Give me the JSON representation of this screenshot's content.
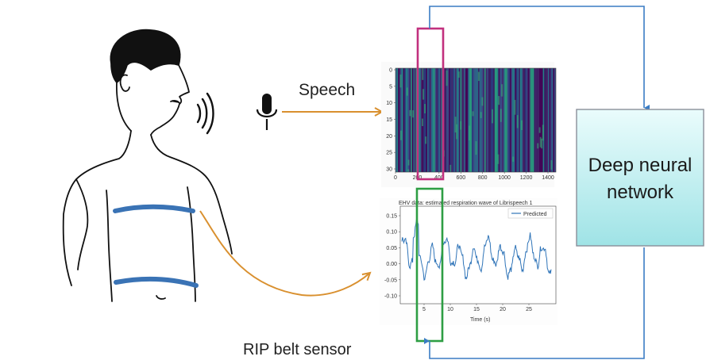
{
  "labels": {
    "speech": "Speech",
    "rip_belt": "RIP belt sensor",
    "dnn_line1": "Deep neural",
    "dnn_line2": "network"
  },
  "spectrogram": {
    "y_ticks": [
      "0",
      "5",
      "10",
      "15",
      "20",
      "25",
      "30"
    ],
    "x_ticks": [
      "0",
      "200",
      "400",
      "600",
      "800",
      "1000",
      "1200",
      "1400"
    ]
  },
  "resp_plot": {
    "title": "EHV data: estimated respiration wave of Librispeech 1",
    "legend": "Predicted",
    "x_label": "Time (s)",
    "y_ticks": [
      "0.15",
      "0.10",
      "0.05",
      "0.00",
      "-0.05",
      "-0.10"
    ],
    "x_ticks": [
      "5",
      "10",
      "15",
      "20",
      "25"
    ]
  },
  "colors": {
    "belt": "#3a73b5",
    "orange_arrow": "#d9902f",
    "blue_loop": "#3a7cc4",
    "magenta_box": "#c2307e",
    "green_box": "#2e9e44",
    "dnn_fill_top": "#eafcfc",
    "dnn_fill_bottom": "#9fe3e6",
    "wave": "#2f74b8"
  },
  "icons": [
    "speaking-person-icon",
    "microphone-icon",
    "sound-waves-icon"
  ]
}
